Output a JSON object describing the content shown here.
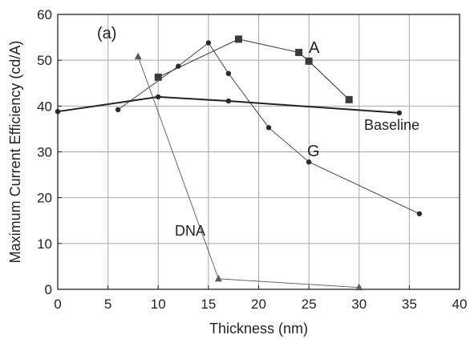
{
  "chart_data": {
    "type": "line",
    "panel_label": "(a)",
    "xlabel": "Thickness (nm)",
    "ylabel": "Maximum Current Efficiency (cd/A)",
    "xlim": [
      0,
      40
    ],
    "ylim": [
      0,
      60
    ],
    "xticks": [
      "0",
      "5",
      "10",
      "15",
      "20",
      "25",
      "30",
      "35",
      "40"
    ],
    "yticks": [
      "0",
      "10",
      "20",
      "30",
      "40",
      "50",
      "60"
    ],
    "grid": true,
    "legend": "none",
    "series": [
      {
        "name": "A",
        "marker": "square",
        "color": "#444444",
        "x": [
          10,
          18,
          24,
          25,
          29
        ],
        "y": [
          46.3,
          54.6,
          51.7,
          49.8,
          41.4
        ]
      },
      {
        "name": "G",
        "marker": "circle",
        "color": "#444444",
        "x": [
          6,
          12,
          15,
          17,
          21,
          25,
          36
        ],
        "y": [
          39.2,
          48.7,
          53.8,
          47.1,
          35.3,
          27.8,
          16.5
        ]
      },
      {
        "name": "Baseline",
        "marker": "circle",
        "color": "#222222",
        "x": [
          0,
          10,
          17,
          34
        ],
        "y": [
          38.8,
          42.0,
          41.1,
          38.5
        ]
      },
      {
        "name": "DNA",
        "marker": "triangle",
        "color": "#555555",
        "x": [
          8,
          16,
          30
        ],
        "y": [
          50.8,
          2.3,
          0.4
        ]
      }
    ]
  }
}
